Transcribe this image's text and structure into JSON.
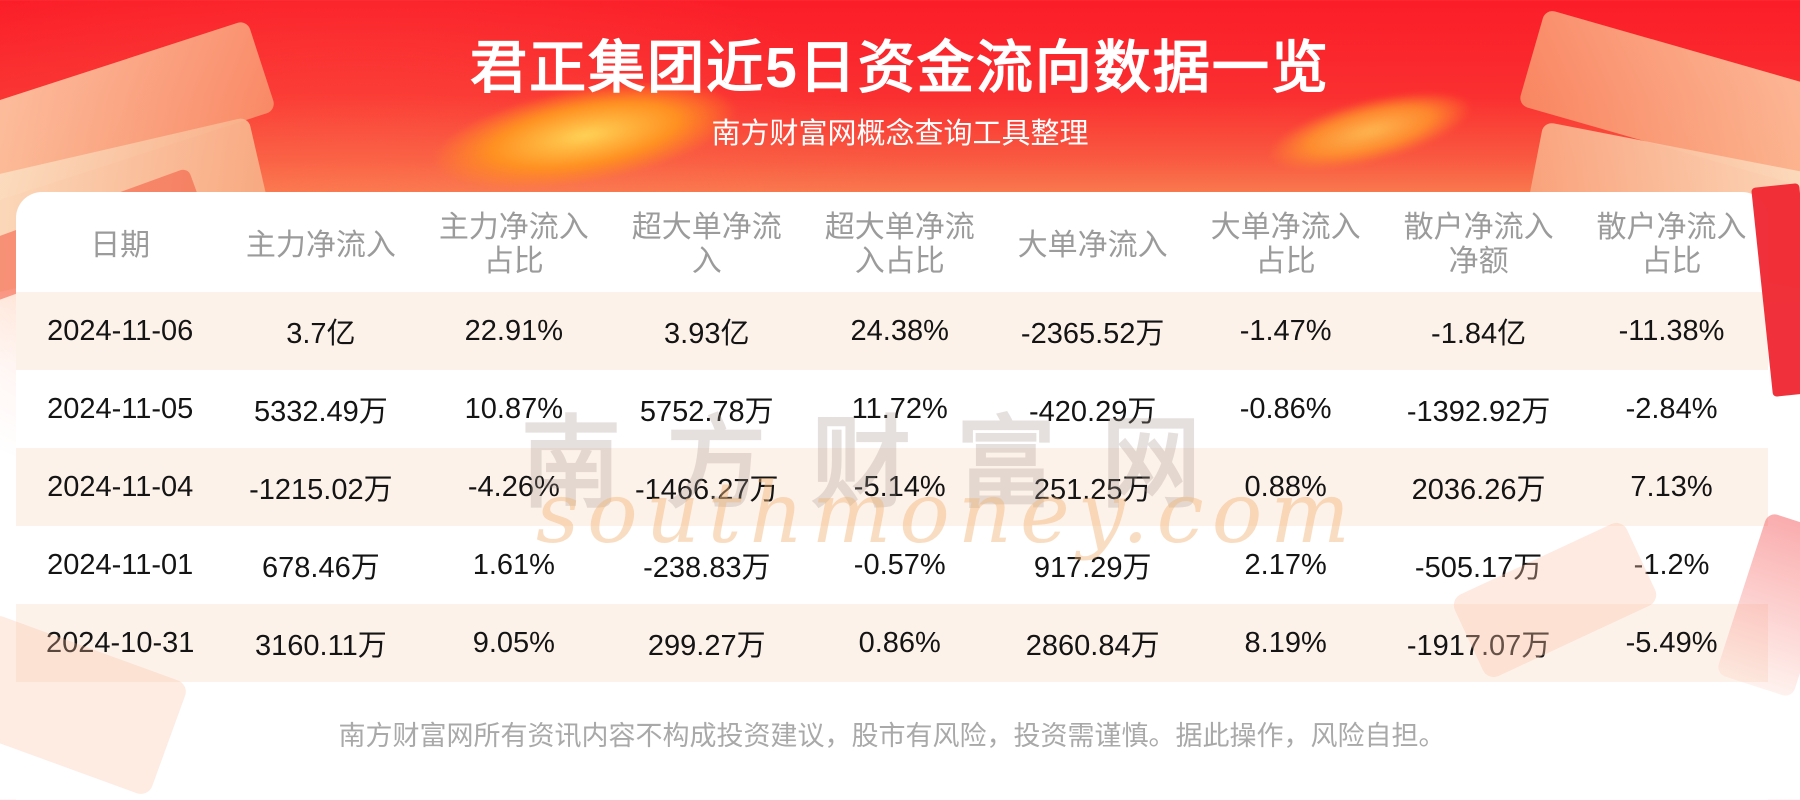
{
  "header": {
    "title": "君正集团近5日资金流向数据一览",
    "subtitle": "南方财富网概念查询工具整理"
  },
  "chart_data": {
    "type": "table",
    "title": "君正集团近5日资金流向数据一览",
    "columns": [
      "日期",
      "主力净流入",
      "主力净流入占比",
      "超大单净流入",
      "超大单净流入占比",
      "大单净流入",
      "大单净流入占比",
      "散户净流入净额",
      "散户净流入占比"
    ],
    "rows": [
      [
        "2024-11-06",
        "3.7亿",
        "22.91%",
        "3.93亿",
        "24.38%",
        "-2365.52万",
        "-1.47%",
        "-1.84亿",
        "-11.38%"
      ],
      [
        "2024-11-05",
        "5332.49万",
        "10.87%",
        "5752.78万",
        "11.72%",
        "-420.29万",
        "-0.86%",
        "-1392.92万",
        "-2.84%"
      ],
      [
        "2024-11-04",
        "-1215.02万",
        "-4.26%",
        "-1466.27万",
        "-5.14%",
        "251.25万",
        "0.88%",
        "2036.26万",
        "7.13%"
      ],
      [
        "2024-11-01",
        "678.46万",
        "1.61%",
        "-238.83万",
        "-0.57%",
        "917.29万",
        "2.17%",
        "-505.17万",
        "-1.2%"
      ],
      [
        "2024-10-31",
        "3160.11万",
        "9.05%",
        "299.27万",
        "0.86%",
        "2860.84万",
        "8.19%",
        "-1917.07万",
        "-5.49%"
      ]
    ]
  },
  "watermark": {
    "text_cn": "南方财富网",
    "text_en": "southmoney.com"
  },
  "footer": {
    "disclaimer": "南方财富网所有资讯内容不构成投资建议，股市有风险，投资需谨慎。据此操作，风险自担。"
  },
  "colors": {
    "background_red": "#fb1d28",
    "row_alt": "#fdf2ea",
    "header_text": "#9b9b9b",
    "data_text": "#141414",
    "footer_text": "#a9a9a9",
    "ribbon_red": "#ef2630",
    "gold": "#ff9121"
  }
}
